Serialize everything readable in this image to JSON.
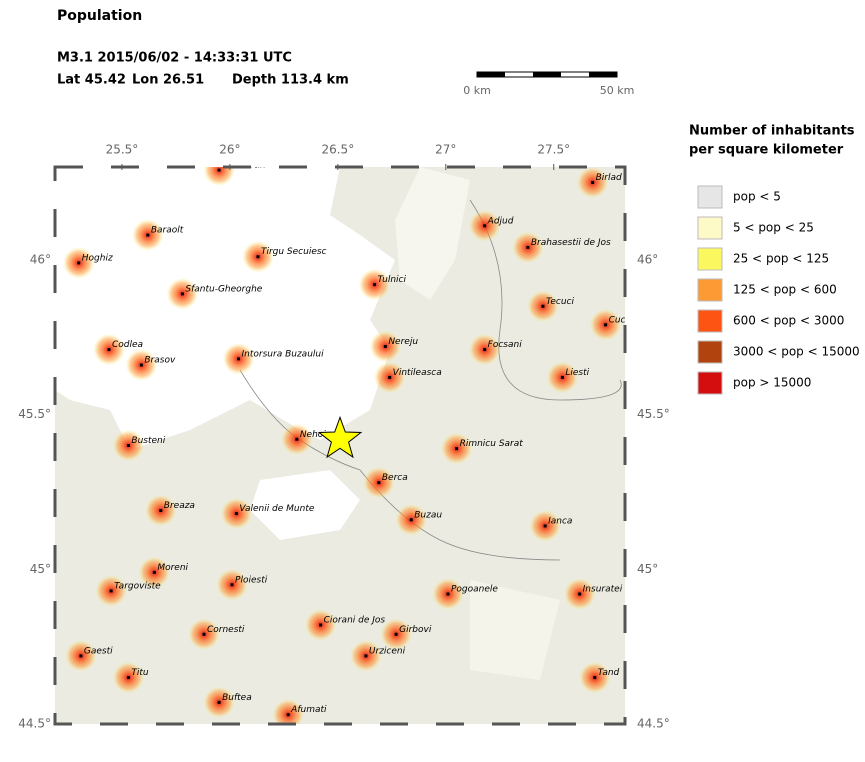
{
  "title": "Population",
  "event": {
    "line1": "M3.1  2015/06/02 - 14:33:31 UTC",
    "lat": {
      "value": 45.42,
      "label": "Lat 45.42"
    },
    "lon": {
      "value": 26.51,
      "label": "Lon  26.51"
    },
    "depth": "Depth 113.4 km"
  },
  "scale_bar": {
    "labels": [
      "0 km",
      "50 km"
    ]
  },
  "legend": {
    "title_lines": [
      "Number of inhabitants",
      "per square kilometer"
    ],
    "items": [
      {
        "label": "pop < 5",
        "color": "#e6e6e6"
      },
      {
        "label": "5 < pop < 25",
        "color": "#fdfac8"
      },
      {
        "label": "25 < pop < 125",
        "color": "#fbf85f"
      },
      {
        "label": "125 < pop < 600",
        "color": "#fd9a33"
      },
      {
        "label": "600 < pop < 3000",
        "color": "#fd5414"
      },
      {
        "label": "3000 < pop < 15000",
        "color": "#b0430e"
      },
      {
        "label": "pop > 15000",
        "color": "#d40e0e"
      }
    ]
  },
  "map": {
    "xlim": [
      25.19,
      27.83
    ],
    "ylim": [
      44.5,
      46.3
    ],
    "lon_ticks": [
      {
        "value": 25.5,
        "label": "25.5°"
      },
      {
        "value": 26,
        "label": "26°"
      },
      {
        "value": 26.5,
        "label": "26.5°"
      },
      {
        "value": 27,
        "label": "27°"
      },
      {
        "value": 27.5,
        "label": "27.5°"
      }
    ],
    "lat_ticks": [
      {
        "value": 46,
        "label": "46°"
      },
      {
        "value": 45.5,
        "label": "45.5°"
      },
      {
        "value": 45,
        "label": "45°"
      },
      {
        "value": 44.5,
        "label": "44.5°"
      }
    ],
    "cities": [
      {
        "name": "Sinmartin",
        "lon": 25.95,
        "lat": 46.29
      },
      {
        "name": "Baraolt",
        "lon": 25.62,
        "lat": 46.08
      },
      {
        "name": "Hoghiz",
        "lon": 25.3,
        "lat": 45.99
      },
      {
        "name": "Tirgu Secuiesc",
        "lon": 26.13,
        "lat": 46.01
      },
      {
        "name": "Sfantu-Gheorghe",
        "lon": 25.78,
        "lat": 45.89
      },
      {
        "name": "Tulnici",
        "lon": 26.67,
        "lat": 45.92
      },
      {
        "name": "Adjud",
        "lon": 27.18,
        "lat": 46.11
      },
      {
        "name": "Brahasestii de Jos",
        "lon": 27.38,
        "lat": 46.04
      },
      {
        "name": "Birlad",
        "lon": 27.68,
        "lat": 46.25
      },
      {
        "name": "Tecuci",
        "lon": 27.45,
        "lat": 45.85
      },
      {
        "name": "Cuc",
        "lon": 27.74,
        "lat": 45.79
      },
      {
        "name": "Codlea",
        "lon": 25.44,
        "lat": 45.71
      },
      {
        "name": "Brasov",
        "lon": 25.59,
        "lat": 45.66
      },
      {
        "name": "Intorsura Buzaului",
        "lon": 26.04,
        "lat": 45.68
      },
      {
        "name": "Nereju",
        "lon": 26.72,
        "lat": 45.72
      },
      {
        "name": "Focsani",
        "lon": 27.18,
        "lat": 45.71
      },
      {
        "name": "Vintileasca",
        "lon": 26.74,
        "lat": 45.62
      },
      {
        "name": "Liesti",
        "lon": 27.54,
        "lat": 45.62
      },
      {
        "name": "Busteni",
        "lon": 25.53,
        "lat": 45.4
      },
      {
        "name": "Nehoiu",
        "lon": 26.31,
        "lat": 45.42
      },
      {
        "name": "Rimnicu Sarat",
        "lon": 27.05,
        "lat": 45.39
      },
      {
        "name": "Berca",
        "lon": 26.69,
        "lat": 45.28
      },
      {
        "name": "Breaza",
        "lon": 25.68,
        "lat": 45.19
      },
      {
        "name": "Valenii de Munte",
        "lon": 26.03,
        "lat": 45.18
      },
      {
        "name": "Buzau",
        "lon": 26.84,
        "lat": 45.16
      },
      {
        "name": "Ianca",
        "lon": 27.46,
        "lat": 45.14
      },
      {
        "name": "Moreni",
        "lon": 25.65,
        "lat": 44.99
      },
      {
        "name": "Ploiesti",
        "lon": 26.01,
        "lat": 44.95
      },
      {
        "name": "Targoviste",
        "lon": 25.45,
        "lat": 44.93
      },
      {
        "name": "Pogoanele",
        "lon": 27.01,
        "lat": 44.92
      },
      {
        "name": "Insuratei",
        "lon": 27.62,
        "lat": 44.92
      },
      {
        "name": "Cornesti",
        "lon": 25.88,
        "lat": 44.79
      },
      {
        "name": "Ciorani de Jos",
        "lon": 26.42,
        "lat": 44.82
      },
      {
        "name": "Girbovi",
        "lon": 26.77,
        "lat": 44.79
      },
      {
        "name": "Urziceni",
        "lon": 26.63,
        "lat": 44.72
      },
      {
        "name": "Gaesti",
        "lon": 25.31,
        "lat": 44.72
      },
      {
        "name": "Titu",
        "lon": 25.53,
        "lat": 44.65
      },
      {
        "name": "Tand",
        "lon": 27.69,
        "lat": 44.65
      },
      {
        "name": "Buftea",
        "lon": 25.95,
        "lat": 44.57
      },
      {
        "name": "Afumati",
        "lon": 26.27,
        "lat": 44.53
      }
    ]
  }
}
